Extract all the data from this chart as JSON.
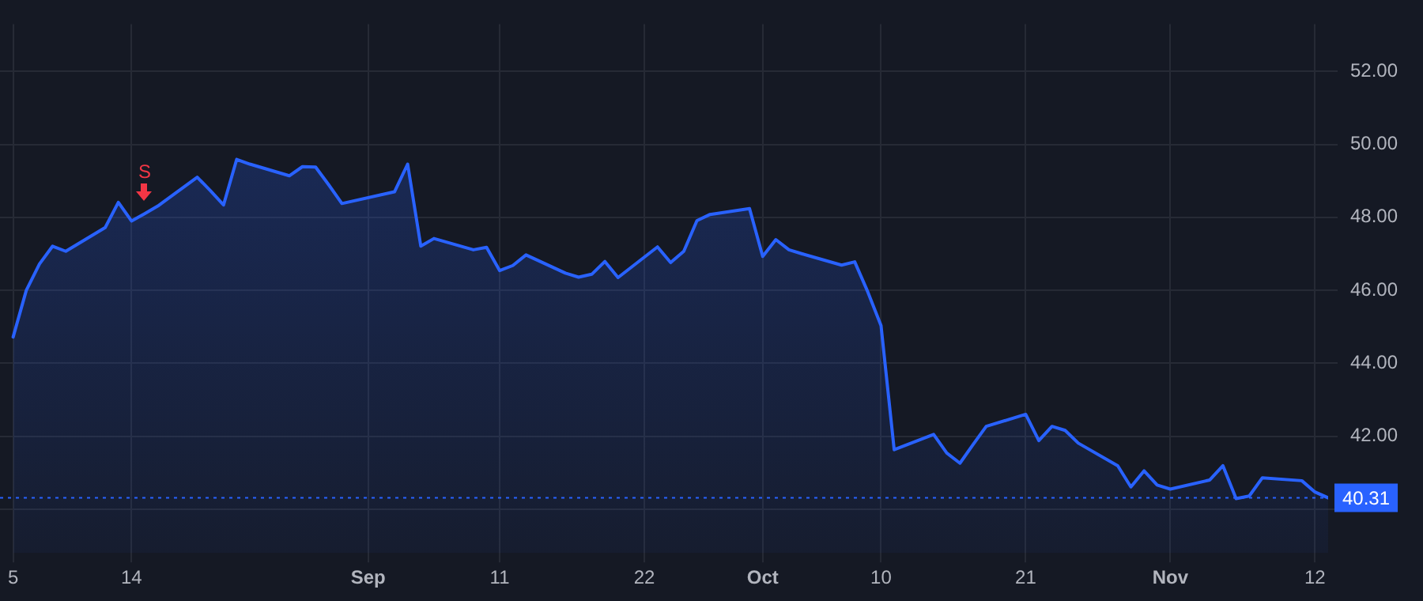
{
  "chart_data": {
    "type": "area",
    "x": [
      "--08-05",
      "--08-06",
      "--08-07",
      "--08-08",
      "--08-09",
      "--08-12",
      "--08-13",
      "--08-14",
      "--08-15",
      "--08-16",
      "--08-19",
      "--08-20",
      "--08-21",
      "--08-22",
      "--08-23",
      "--08-26",
      "--08-27",
      "--08-28",
      "--08-29",
      "--08-30",
      "--09-03",
      "--09-04",
      "--09-05",
      "--09-06",
      "--09-09",
      "--09-10",
      "--09-11",
      "--09-12",
      "--09-13",
      "--09-16",
      "--09-17",
      "--09-18",
      "--09-19",
      "--09-20",
      "--09-23",
      "--09-24",
      "--09-25",
      "--09-26",
      "--09-27",
      "--09-30",
      "--10-01",
      "--10-02",
      "--10-03",
      "--10-04",
      "--10-07",
      "--10-08",
      "--10-09",
      "--10-10",
      "--10-11",
      "--10-14",
      "--10-15",
      "--10-16",
      "--10-17",
      "--10-18",
      "--10-21",
      "--10-22",
      "--10-23",
      "--10-24",
      "--10-25",
      "--10-28",
      "--10-29",
      "--10-30",
      "--10-31",
      "--11-01",
      "--11-04",
      "--11-05",
      "--11-06",
      "--11-07",
      "--11-08",
      "--11-11",
      "--11-12",
      "--11-13"
    ],
    "series": [
      {
        "color": "#2962ff",
        "values": [
          44.72,
          46.0,
          46.72,
          47.21,
          47.07,
          47.72,
          48.41,
          47.9,
          48.1,
          48.31,
          49.1,
          48.73,
          48.34,
          49.59,
          49.46,
          49.14,
          49.39,
          49.38,
          48.89,
          48.38,
          48.7,
          49.46,
          47.21,
          47.42,
          47.11,
          47.18,
          46.54,
          46.68,
          46.97,
          46.47,
          46.36,
          46.44,
          46.79,
          46.35,
          47.19,
          46.76,
          47.07,
          47.91,
          48.08,
          48.24,
          46.93,
          47.39,
          47.11,
          47.0,
          46.69,
          46.78,
          45.95,
          45.03,
          41.63,
          42.05,
          41.54,
          41.26,
          41.77,
          42.27,
          42.6,
          41.88,
          42.27,
          42.16,
          41.81,
          41.19,
          40.61,
          41.05,
          40.66,
          40.55,
          40.8,
          41.19,
          40.29,
          40.36,
          40.86,
          40.78,
          40.47,
          40.31
        ]
      }
    ],
    "ylim": [
      38.8,
      53.3
    ],
    "yticks": [
      {
        "value": 40,
        "label": null
      },
      {
        "value": 42,
        "label": "42.00"
      },
      {
        "value": 44,
        "label": "44.00"
      },
      {
        "value": 46,
        "label": "46.00"
      },
      {
        "value": 48,
        "label": "48.00"
      },
      {
        "value": 50,
        "label": "50.00"
      },
      {
        "value": 52,
        "label": "52.00"
      }
    ],
    "xticks": [
      {
        "value": "--08-05",
        "label": "5"
      },
      {
        "value": "--08-14",
        "label": "14"
      },
      {
        "value": "--09-01",
        "label": "Sep"
      },
      {
        "value": "--09-11",
        "label": "11"
      },
      {
        "value": "--09-22",
        "label": "22"
      },
      {
        "value": "--10-01",
        "label": "Oct"
      },
      {
        "value": "--10-10",
        "label": "10"
      },
      {
        "value": "--10-21",
        "label": "21"
      },
      {
        "value": "--11-01",
        "label": "Nov"
      },
      {
        "value": "--11-12",
        "label": "12"
      }
    ],
    "xlim": [
      "--08-04",
      "--11-13"
    ],
    "grid": true,
    "legend": false,
    "marker": "none",
    "line_style": "solid",
    "ref_lines": [
      {
        "axis": "y",
        "value": 40.31,
        "label": "40.31",
        "color": "#2962ff",
        "line_style": "dotted"
      }
    ],
    "annotations": [
      {
        "text": "S",
        "x": "--08-15",
        "y": 48.1
      }
    ]
  }
}
